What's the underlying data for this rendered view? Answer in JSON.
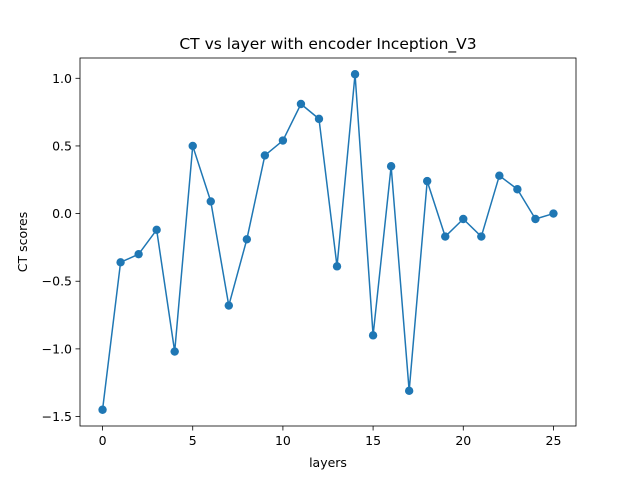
{
  "chart_data": {
    "type": "line",
    "title": "CT vs layer with encoder Inception_V3",
    "xlabel": "layers",
    "ylabel": "CT scores",
    "xlim": [
      -1.25,
      26.25
    ],
    "ylim": [
      -1.57,
      1.15
    ],
    "xticks": [
      0,
      5,
      10,
      15,
      20,
      25
    ],
    "yticks": [
      -1.5,
      -1.0,
      -0.5,
      0.0,
      0.5,
      1.0
    ],
    "xtick_labels": [
      "0",
      "5",
      "10",
      "15",
      "20",
      "25"
    ],
    "ytick_labels": [
      "−1.5",
      "−1.0",
      "−0.5",
      "0.0",
      "0.5",
      "1.0"
    ],
    "grid": false,
    "markers": true,
    "series": [
      {
        "color": "#1f77b4",
        "x": [
          0,
          1,
          2,
          3,
          4,
          5,
          6,
          7,
          8,
          9,
          10,
          11,
          12,
          13,
          14,
          15,
          16,
          17,
          18,
          19,
          20,
          21,
          22,
          23,
          24,
          25
        ],
        "y": [
          -1.45,
          -0.36,
          -0.3,
          -0.12,
          -1.02,
          0.5,
          0.09,
          -0.68,
          -0.19,
          0.43,
          0.54,
          0.81,
          0.7,
          -0.39,
          1.03,
          -0.9,
          0.35,
          -1.31,
          0.24,
          -0.17,
          -0.04,
          -0.17,
          0.28,
          0.18,
          -0.04,
          0.0
        ]
      }
    ]
  }
}
